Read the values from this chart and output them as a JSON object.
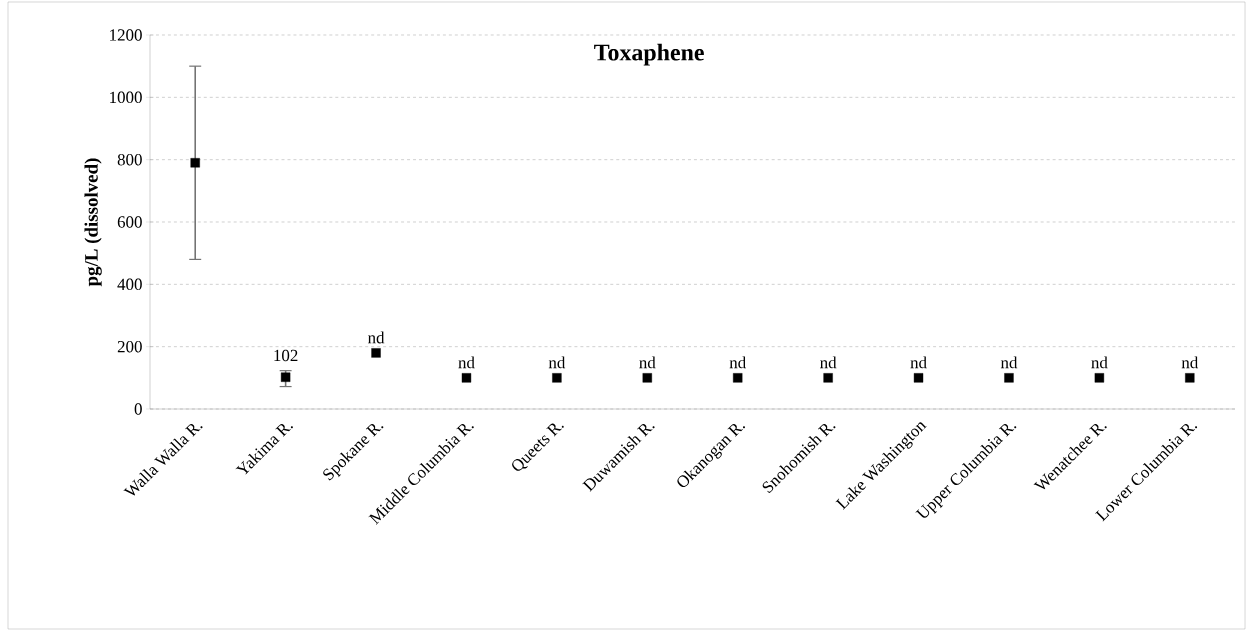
{
  "chart_data": {
    "type": "scatter",
    "title": "Toxaphene",
    "ylabel": "pg/L (dissolved)",
    "categories": [
      "Walla Walla R.",
      "Yakima R.",
      "Spokane R.",
      "Middle Columbia R.",
      "Queets R.",
      "Duwamish R.",
      "Okanogan R.",
      "Snohomish R.",
      "Lake Washington",
      "Upper Columbia R.",
      "Wenatchee R.",
      "Lower Columbia R."
    ],
    "series": [
      {
        "color": "#000000",
        "values": [
          790,
          102,
          180,
          100,
          100,
          100,
          100,
          100,
          100,
          100,
          100,
          100
        ],
        "errors": [
          [
            480,
            1100
          ],
          [
            72,
            123
          ],
          null,
          null,
          null,
          null,
          null,
          null,
          null,
          null,
          null,
          null
        ],
        "value_labels": [
          null,
          "102",
          "nd",
          "nd",
          "nd",
          "nd",
          "nd",
          "nd",
          "nd",
          "nd",
          "nd",
          "nd"
        ]
      }
    ],
    "ylim": [
      0,
      1200
    ],
    "yticks": [
      0,
      200,
      400,
      600,
      800,
      1000,
      1200
    ],
    "grid": "y",
    "marker": "square"
  }
}
